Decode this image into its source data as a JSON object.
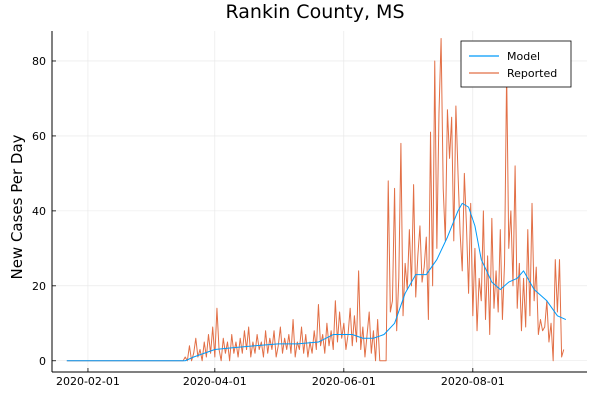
{
  "chart_data": {
    "type": "line",
    "title": "Rankin County, MS",
    "xlabel": "",
    "ylabel": "New Cases Per Day",
    "x_start": "2020-01-22",
    "x_end": "2020-09-18",
    "xlim": [
      "2020-01-15",
      "2020-09-24"
    ],
    "ylim": [
      -3,
      88
    ],
    "x_ticks": [
      "2020-02-01",
      "2020-04-01",
      "2020-06-01",
      "2020-08-01"
    ],
    "y_ticks": [
      0,
      20,
      40,
      60,
      80
    ],
    "grid": true,
    "legend_position": "top-right",
    "series": [
      {
        "name": "Model",
        "color": "#009AF9",
        "points": [
          [
            "2020-01-22",
            0
          ],
          [
            "2020-03-18",
            0
          ],
          [
            "2020-03-22",
            1
          ],
          [
            "2020-03-27",
            2
          ],
          [
            "2020-04-01",
            3
          ],
          [
            "2020-04-10",
            3.5
          ],
          [
            "2020-04-20",
            4
          ],
          [
            "2020-05-01",
            4.5
          ],
          [
            "2020-05-10",
            4.5
          ],
          [
            "2020-05-20",
            5
          ],
          [
            "2020-05-27",
            7
          ],
          [
            "2020-06-01",
            7
          ],
          [
            "2020-06-05",
            7
          ],
          [
            "2020-06-10",
            6
          ],
          [
            "2020-06-15",
            6
          ],
          [
            "2020-06-20",
            7
          ],
          [
            "2020-06-25",
            10
          ],
          [
            "2020-06-30",
            18
          ],
          [
            "2020-07-05",
            23
          ],
          [
            "2020-07-10",
            23
          ],
          [
            "2020-07-15",
            27
          ],
          [
            "2020-07-20",
            33
          ],
          [
            "2020-07-25",
            40
          ],
          [
            "2020-07-27",
            42
          ],
          [
            "2020-07-30",
            41
          ],
          [
            "2020-08-02",
            36
          ],
          [
            "2020-08-05",
            27
          ],
          [
            "2020-08-10",
            21
          ],
          [
            "2020-08-14",
            19
          ],
          [
            "2020-08-18",
            21
          ],
          [
            "2020-08-22",
            22
          ],
          [
            "2020-08-25",
            24
          ],
          [
            "2020-08-30",
            19
          ],
          [
            "2020-09-05",
            16
          ],
          [
            "2020-09-10",
            12
          ],
          [
            "2020-09-14",
            11
          ]
        ]
      },
      {
        "name": "Reported",
        "color": "#E26F46",
        "points": [
          [
            "2020-01-22",
            0
          ],
          [
            "2020-03-17",
            0
          ],
          [
            "2020-03-18",
            1
          ],
          [
            "2020-03-19",
            0
          ],
          [
            "2020-03-20",
            4
          ],
          [
            "2020-03-21",
            0
          ],
          [
            "2020-03-22",
            2
          ],
          [
            "2020-03-23",
            6
          ],
          [
            "2020-03-24",
            1
          ],
          [
            "2020-03-25",
            3
          ],
          [
            "2020-03-26",
            0
          ],
          [
            "2020-03-27",
            5
          ],
          [
            "2020-03-28",
            1
          ],
          [
            "2020-03-29",
            7
          ],
          [
            "2020-03-30",
            2
          ],
          [
            "2020-03-31",
            9
          ],
          [
            "2020-04-01",
            1
          ],
          [
            "2020-04-02",
            14
          ],
          [
            "2020-04-03",
            3
          ],
          [
            "2020-04-04",
            0
          ],
          [
            "2020-04-05",
            6
          ],
          [
            "2020-04-06",
            2
          ],
          [
            "2020-04-07",
            5
          ],
          [
            "2020-04-08",
            0
          ],
          [
            "2020-04-09",
            7
          ],
          [
            "2020-04-10",
            2
          ],
          [
            "2020-04-11",
            5
          ],
          [
            "2020-04-12",
            1
          ],
          [
            "2020-04-13",
            6
          ],
          [
            "2020-04-14",
            2
          ],
          [
            "2020-04-15",
            8
          ],
          [
            "2020-04-16",
            3
          ],
          [
            "2020-04-17",
            9
          ],
          [
            "2020-04-18",
            1
          ],
          [
            "2020-04-19",
            5
          ],
          [
            "2020-04-20",
            2
          ],
          [
            "2020-04-21",
            7
          ],
          [
            "2020-04-22",
            3
          ],
          [
            "2020-04-23",
            5
          ],
          [
            "2020-04-24",
            1
          ],
          [
            "2020-04-25",
            8
          ],
          [
            "2020-04-26",
            2
          ],
          [
            "2020-04-27",
            6
          ],
          [
            "2020-04-28",
            3
          ],
          [
            "2020-04-29",
            8
          ],
          [
            "2020-04-30",
            1
          ],
          [
            "2020-05-01",
            4
          ],
          [
            "2020-05-02",
            9
          ],
          [
            "2020-05-03",
            2
          ],
          [
            "2020-05-04",
            6
          ],
          [
            "2020-05-05",
            3
          ],
          [
            "2020-05-06",
            7
          ],
          [
            "2020-05-07",
            2
          ],
          [
            "2020-05-08",
            11
          ],
          [
            "2020-05-09",
            1
          ],
          [
            "2020-05-10",
            5
          ],
          [
            "2020-05-11",
            3
          ],
          [
            "2020-05-12",
            9
          ],
          [
            "2020-05-13",
            2
          ],
          [
            "2020-05-14",
            7
          ],
          [
            "2020-05-15",
            1
          ],
          [
            "2020-05-16",
            5
          ],
          [
            "2020-05-17",
            2
          ],
          [
            "2020-05-18",
            8
          ],
          [
            "2020-05-19",
            3
          ],
          [
            "2020-05-20",
            15
          ],
          [
            "2020-05-21",
            4
          ],
          [
            "2020-05-22",
            7
          ],
          [
            "2020-05-23",
            2
          ],
          [
            "2020-05-24",
            10
          ],
          [
            "2020-05-25",
            4
          ],
          [
            "2020-05-26",
            8
          ],
          [
            "2020-05-27",
            3
          ],
          [
            "2020-05-28",
            16
          ],
          [
            "2020-05-29",
            5
          ],
          [
            "2020-05-30",
            13
          ],
          [
            "2020-05-31",
            6
          ],
          [
            "2020-06-01",
            10
          ],
          [
            "2020-06-02",
            3
          ],
          [
            "2020-06-03",
            7
          ],
          [
            "2020-06-04",
            14
          ],
          [
            "2020-06-05",
            4
          ],
          [
            "2020-06-06",
            12
          ],
          [
            "2020-06-07",
            5
          ],
          [
            "2020-06-08",
            24
          ],
          [
            "2020-06-09",
            3
          ],
          [
            "2020-06-10",
            9
          ],
          [
            "2020-06-11",
            1
          ],
          [
            "2020-06-12",
            7
          ],
          [
            "2020-06-13",
            13
          ],
          [
            "2020-06-14",
            2
          ],
          [
            "2020-06-15",
            8
          ],
          [
            "2020-06-16",
            0
          ],
          [
            "2020-06-17",
            11
          ],
          [
            "2020-06-18",
            0
          ],
          [
            "2020-06-19",
            0
          ],
          [
            "2020-06-20",
            0
          ],
          [
            "2020-06-21",
            0
          ],
          [
            "2020-06-22",
            48
          ],
          [
            "2020-06-23",
            13
          ],
          [
            "2020-06-24",
            16
          ],
          [
            "2020-06-25",
            46
          ],
          [
            "2020-06-26",
            8
          ],
          [
            "2020-06-27",
            22
          ],
          [
            "2020-06-28",
            58
          ],
          [
            "2020-06-29",
            12
          ],
          [
            "2020-06-30",
            26
          ],
          [
            "2020-07-01",
            19
          ],
          [
            "2020-07-02",
            35
          ],
          [
            "2020-07-03",
            20
          ],
          [
            "2020-07-04",
            47
          ],
          [
            "2020-07-05",
            17
          ],
          [
            "2020-07-06",
            28
          ],
          [
            "2020-07-07",
            36
          ],
          [
            "2020-07-08",
            21
          ],
          [
            "2020-07-09",
            25
          ],
          [
            "2020-07-10",
            33
          ],
          [
            "2020-07-11",
            11
          ],
          [
            "2020-07-12",
            61
          ],
          [
            "2020-07-13",
            20
          ],
          [
            "2020-07-14",
            80
          ],
          [
            "2020-07-15",
            30
          ],
          [
            "2020-07-16",
            66
          ],
          [
            "2020-07-17",
            86
          ],
          [
            "2020-07-18",
            46
          ],
          [
            "2020-07-19",
            32
          ],
          [
            "2020-07-20",
            67
          ],
          [
            "2020-07-21",
            54
          ],
          [
            "2020-07-22",
            65
          ],
          [
            "2020-07-23",
            32
          ],
          [
            "2020-07-24",
            68
          ],
          [
            "2020-07-25",
            50
          ],
          [
            "2020-07-26",
            34
          ],
          [
            "2020-07-27",
            24
          ],
          [
            "2020-07-28",
            50
          ],
          [
            "2020-07-29",
            36
          ],
          [
            "2020-07-30",
            18
          ],
          [
            "2020-07-31",
            42
          ],
          [
            "2020-08-01",
            12
          ],
          [
            "2020-08-02",
            30
          ],
          [
            "2020-08-03",
            8
          ],
          [
            "2020-08-04",
            22
          ],
          [
            "2020-08-05",
            16
          ],
          [
            "2020-08-06",
            40
          ],
          [
            "2020-08-07",
            11
          ],
          [
            "2020-08-08",
            28
          ],
          [
            "2020-08-09",
            7
          ],
          [
            "2020-08-10",
            38
          ],
          [
            "2020-08-11",
            14
          ],
          [
            "2020-08-12",
            24
          ],
          [
            "2020-08-13",
            13
          ],
          [
            "2020-08-14",
            35
          ],
          [
            "2020-08-15",
            11
          ],
          [
            "2020-08-16",
            26
          ],
          [
            "2020-08-17",
            77
          ],
          [
            "2020-08-18",
            30
          ],
          [
            "2020-08-19",
            40
          ],
          [
            "2020-08-20",
            20
          ],
          [
            "2020-08-21",
            52
          ],
          [
            "2020-08-22",
            14
          ],
          [
            "2020-08-23",
            26
          ],
          [
            "2020-08-24",
            8
          ],
          [
            "2020-08-25",
            22
          ],
          [
            "2020-08-26",
            9
          ],
          [
            "2020-08-27",
            35
          ],
          [
            "2020-08-28",
            12
          ],
          [
            "2020-08-29",
            42
          ],
          [
            "2020-08-30",
            16
          ],
          [
            "2020-08-31",
            25
          ],
          [
            "2020-09-01",
            7
          ],
          [
            "2020-09-02",
            11
          ],
          [
            "2020-09-03",
            8
          ],
          [
            "2020-09-04",
            9
          ],
          [
            "2020-09-05",
            16
          ],
          [
            "2020-09-06",
            5
          ],
          [
            "2020-09-07",
            10
          ],
          [
            "2020-09-08",
            0
          ],
          [
            "2020-09-09",
            27
          ],
          [
            "2020-09-10",
            13
          ],
          [
            "2020-09-11",
            27
          ],
          [
            "2020-09-12",
            1
          ],
          [
            "2020-09-13",
            3
          ]
        ]
      }
    ]
  }
}
